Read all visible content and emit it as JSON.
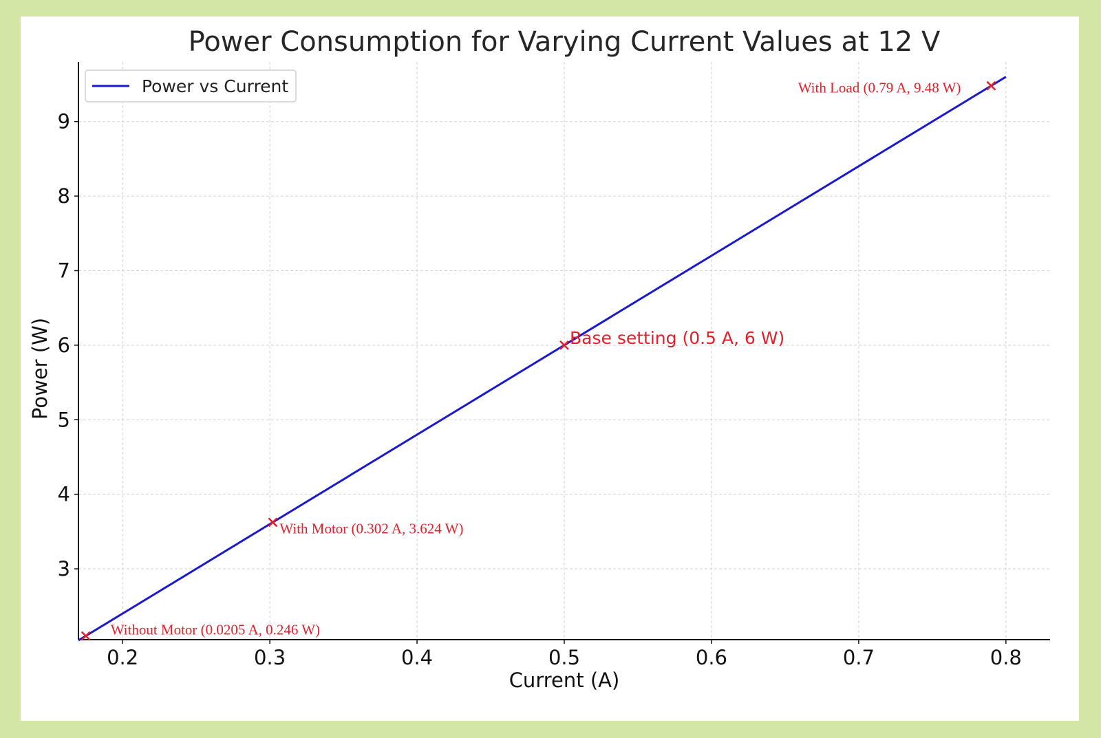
{
  "chart_data": {
    "type": "line",
    "title": "Power Consumption for Varying Current Values at 12 V",
    "xlabel": "Current (A)",
    "ylabel": "Power (W)",
    "xlim": [
      0.17,
      0.83
    ],
    "ylim": [
      2.05,
      9.8
    ],
    "xticks": [
      "0.2",
      "0.3",
      "0.4",
      "0.5",
      "0.6",
      "0.7",
      "0.8"
    ],
    "yticks": [
      "3",
      "4",
      "5",
      "6",
      "7",
      "8",
      "9"
    ],
    "grid": true,
    "legend_position": "top-left",
    "series": [
      {
        "name": "Power vs Current",
        "color": "#1a1acc",
        "x": [
          0.17,
          0.8
        ],
        "y": [
          2.04,
          9.6
        ]
      }
    ],
    "annotations": [
      {
        "label": "Without Motor (0.0205 A, 0.246 W)",
        "x": 0.175,
        "y": 2.1,
        "style": "serif"
      },
      {
        "label": "With Motor (0.302 A, 3.624 W)",
        "x": 0.302,
        "y": 3.624,
        "style": "serif"
      },
      {
        "label": "Base setting (0.5 A, 6 W)",
        "x": 0.5,
        "y": 6.0,
        "style": "sans"
      },
      {
        "label": "With Load (0.79 A, 9.48 W)",
        "x": 0.79,
        "y": 9.48,
        "style": "serif"
      }
    ],
    "annotation_color": "#e3202b",
    "marker_symbol": "x"
  }
}
